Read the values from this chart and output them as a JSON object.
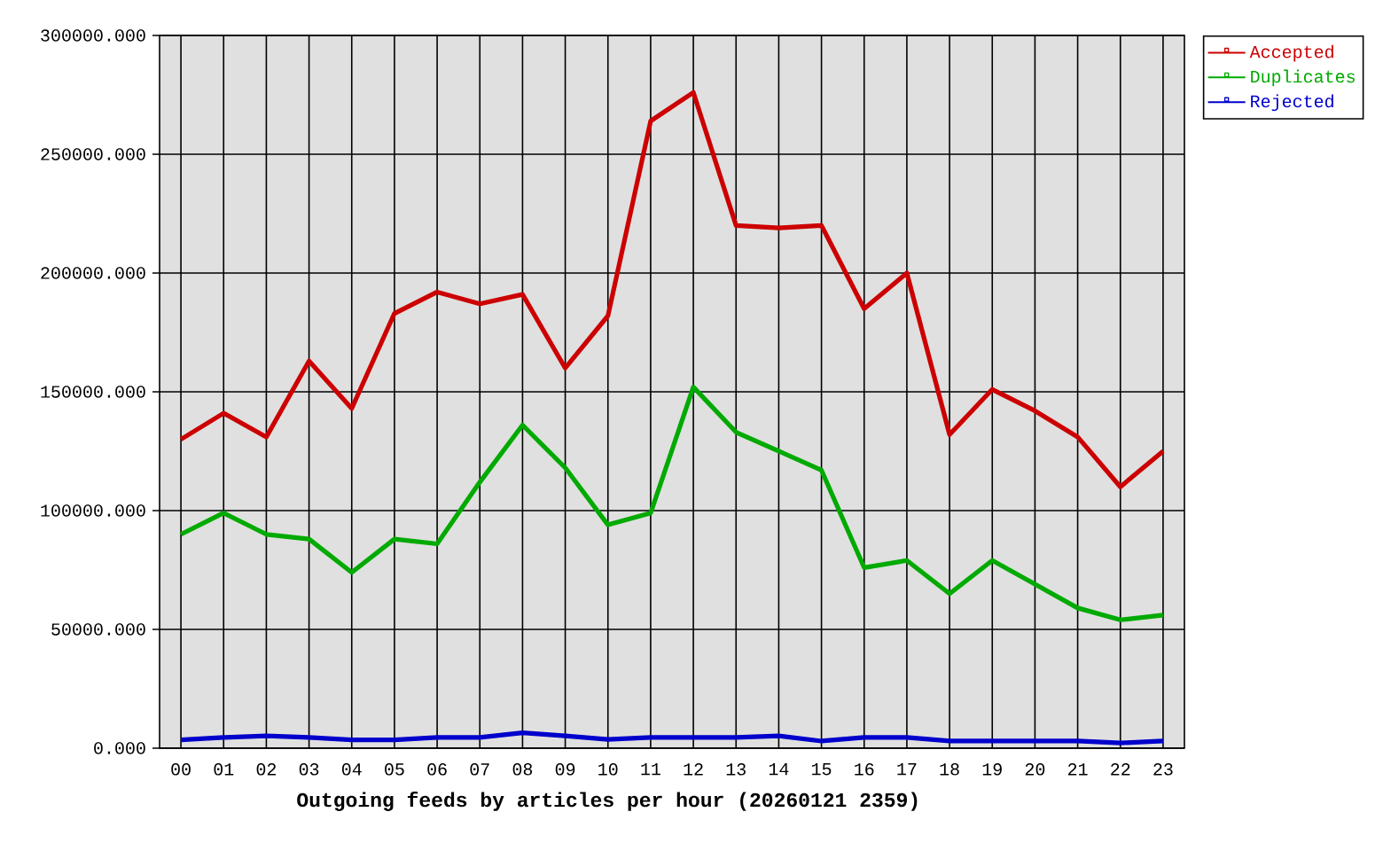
{
  "chart_data": {
    "type": "line",
    "xlabel": "Outgoing feeds by articles per hour (20260121 2359)",
    "categories": [
      "00",
      "01",
      "02",
      "03",
      "04",
      "05",
      "06",
      "07",
      "08",
      "09",
      "10",
      "11",
      "12",
      "13",
      "14",
      "15",
      "16",
      "17",
      "18",
      "19",
      "20",
      "21",
      "22",
      "23"
    ],
    "series": [
      {
        "name": "Accepted",
        "color": "#cc0000",
        "values": [
          130000,
          141000,
          131000,
          163000,
          143000,
          183000,
          192000,
          187000,
          191000,
          160000,
          182000,
          264000,
          276000,
          220000,
          219000,
          220000,
          185000,
          200000,
          132000,
          151000,
          142000,
          131000,
          110000,
          125000
        ]
      },
      {
        "name": "Duplicates",
        "color": "#00aa00",
        "values": [
          90000,
          99000,
          90000,
          88000,
          74000,
          88000,
          86000,
          112000,
          136000,
          118000,
          94000,
          99000,
          152000,
          133000,
          125000,
          117000,
          76000,
          79000,
          65000,
          79000,
          69000,
          59000,
          54000,
          56000
        ]
      },
      {
        "name": "Rejected",
        "color": "#0000cc",
        "values": [
          3500,
          4500,
          5200,
          4500,
          3500,
          3500,
          4500,
          4500,
          6500,
          5200,
          3700,
          4500,
          4500,
          4500,
          5200,
          3000,
          4500,
          4500,
          3000,
          3000,
          3000,
          3000,
          2200,
          3000
        ]
      }
    ],
    "ylim": [
      0,
      300000
    ],
    "yticks": [
      {
        "value": 0,
        "label": "0.000"
      },
      {
        "value": 50000,
        "label": "50000.000"
      },
      {
        "value": 100000,
        "label": "100000.000"
      },
      {
        "value": 150000,
        "label": "150000.000"
      },
      {
        "value": 200000,
        "label": "200000.000"
      },
      {
        "value": 250000,
        "label": "250000.000"
      },
      {
        "value": 300000,
        "label": "300000.000"
      }
    ],
    "grid": true,
    "legend": "top right"
  }
}
